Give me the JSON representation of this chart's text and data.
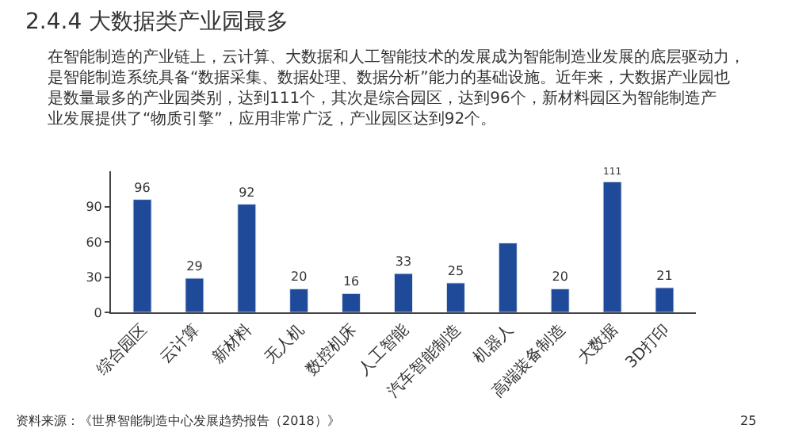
{
  "chart_data": {
    "type": "bar",
    "title": "2.4.4 大数据类产业园最多",
    "subtitle": "在智能制造的产业链上，云计算、大数据和人工智能技术的发展成为智能制造业发展的底层驱动力，是智能制造系统具备“数据采集、数据处理、数据分析”能力的基础设施。近年来，大数据产业园也是数量最多的产业园类别，达到111个，其次是综合园区，达到96个，新材料园区为智能制造产业发展提供了“物质引擎”，应用非常广泛，产业园区达到92个。",
    "categories": [
      "综合园区",
      "云计算",
      "新材料",
      "无人机",
      "数控机床",
      "人工智能",
      "汽车智能制造",
      "机器人",
      "高端装备制造",
      "大数据",
      "3D打印"
    ],
    "values": [
      96,
      29,
      92,
      20,
      16,
      33,
      25,
      59,
      20,
      111,
      21
    ],
    "value_labels": [
      "96",
      "29",
      "92",
      "20",
      "16",
      "33",
      "25",
      null,
      "20",
      "111",
      "21"
    ],
    "color": "#1f4a9a",
    "ylim": [
      0,
      120
    ],
    "yticks": [
      0,
      30,
      60,
      90
    ],
    "annotations": [
      "资料来源：《世界智能制造中心发展趋势报告（2018）》",
      "25"
    ]
  }
}
